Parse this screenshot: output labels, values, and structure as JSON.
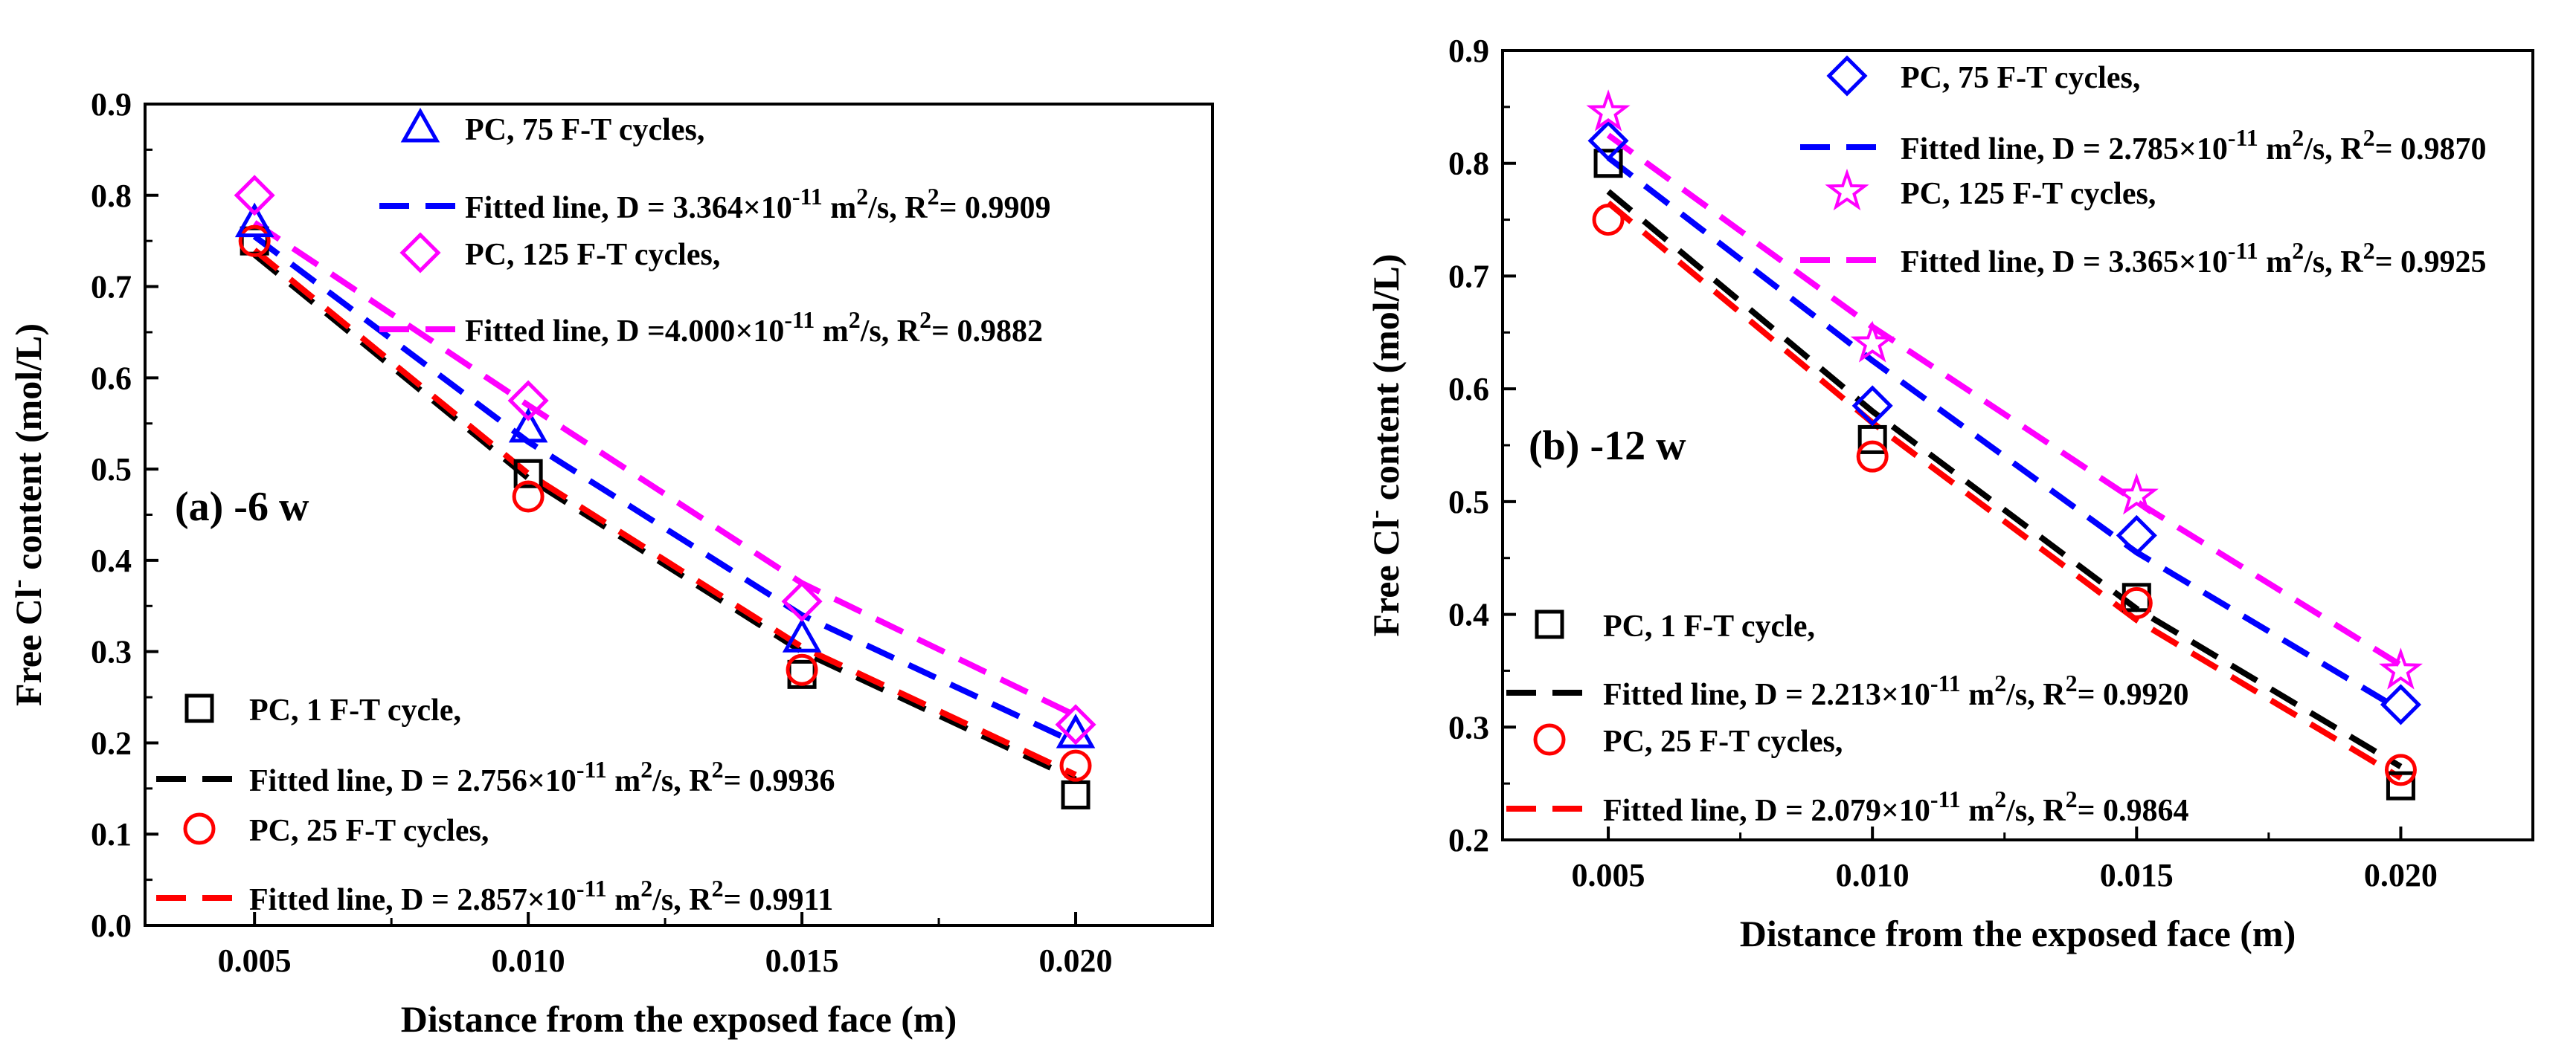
{
  "chart_data": [
    {
      "type": "scatter",
      "panel_label": "(a) -6 w",
      "xlabel": "Distance from the exposed face (m)",
      "ylabel_pre": "Free Cl",
      "ylabel_sup": "-",
      "ylabel_post": " content (mol/L)",
      "xlim": [
        0.003,
        0.0225
      ],
      "ylim": [
        0.0,
        0.9
      ],
      "xticks": [
        "0.005",
        "0.010",
        "0.015",
        "0.020"
      ],
      "xtick_values": [
        0.005,
        0.01,
        0.015,
        0.02
      ],
      "yticks": [
        "0.0",
        "0.1",
        "0.2",
        "0.3",
        "0.4",
        "0.5",
        "0.6",
        "0.7",
        "0.8",
        "0.9"
      ],
      "ytick_values": [
        0.0,
        0.1,
        0.2,
        0.3,
        0.4,
        0.5,
        0.6,
        0.7,
        0.8,
        0.9
      ],
      "grid": false,
      "series": [
        {
          "name": "PC, 1 F-T cycle,",
          "marker": "square",
          "color": "#000000",
          "x": [
            0.005,
            0.01,
            0.015,
            0.02
          ],
          "y": [
            0.75,
            0.495,
            0.275,
            0.143
          ],
          "fit_name_pre": "Fitted line, D = 2.756×10",
          "fit_exp": "-11",
          "fit_mid": " m",
          "fit_exp2": "2",
          "fit_post_a": "/s, R",
          "fit_exp3": "2",
          "fit_post_b": "= 0.9936",
          "fit_y": [
            0.735,
            0.49,
            0.3,
            0.16
          ]
        },
        {
          "name": "PC, 25 F-T cycles,",
          "marker": "circle",
          "color": "#ff0000",
          "x": [
            0.005,
            0.01,
            0.015,
            0.02
          ],
          "y": [
            0.75,
            0.47,
            0.28,
            0.175
          ],
          "fit_name_pre": "Fitted line, D = 2.857×10",
          "fit_exp": "-11",
          "fit_mid": " m",
          "fit_exp2": "2",
          "fit_post_a": "/s, R",
          "fit_exp3": "2",
          "fit_post_b": "= 0.9911",
          "fit_y": [
            0.74,
            0.495,
            0.305,
            0.165
          ]
        },
        {
          "name": "PC, 75 F-T cycles,",
          "marker": "triangle",
          "color": "#0000ff",
          "x": [
            0.005,
            0.01,
            0.015,
            0.02
          ],
          "y": [
            0.77,
            0.545,
            0.315,
            0.21
          ],
          "fit_name_pre": "Fitted line, D = 3.364×10",
          "fit_exp": "-11",
          "fit_mid": " m",
          "fit_exp2": "2",
          "fit_post_a": "/s, R",
          "fit_exp3": "2",
          "fit_post_b": "= 0.9909",
          "fit_y": [
            0.755,
            0.53,
            0.34,
            0.2
          ]
        },
        {
          "name": "PC, 125 F-T cycles,",
          "marker": "diamond",
          "color": "#ff00ff",
          "x": [
            0.005,
            0.01,
            0.015,
            0.02
          ],
          "y": [
            0.8,
            0.575,
            0.355,
            0.22
          ],
          "fit_name_pre": "Fitted line, D =4.000×10",
          "fit_exp": "-11",
          "fit_mid": " m",
          "fit_exp2": "2",
          "fit_post_a": "/s, R",
          "fit_exp3": "2",
          "fit_post_b": "= 0.9882",
          "fit_y": [
            0.77,
            0.57,
            0.375,
            0.23
          ]
        }
      ]
    },
    {
      "type": "scatter",
      "panel_label": "(b) -12 w",
      "xlabel": "Distance from the exposed face (m)",
      "ylabel_pre": "Free Cl",
      "ylabel_sup": "-",
      "ylabel_post": " content (mol/L)",
      "xlim": [
        0.003,
        0.0225
      ],
      "ylim": [
        0.2,
        0.9
      ],
      "xticks": [
        "0.005",
        "0.010",
        "0.015",
        "0.020"
      ],
      "xtick_values": [
        0.005,
        0.01,
        0.015,
        0.02
      ],
      "yticks": [
        "0.2",
        "0.3",
        "0.4",
        "0.5",
        "0.6",
        "0.7",
        "0.8",
        "0.9"
      ],
      "ytick_values": [
        0.2,
        0.3,
        0.4,
        0.5,
        0.6,
        0.7,
        0.8,
        0.9
      ],
      "grid": false,
      "series": [
        {
          "name": "PC, 1 F-T cycle,",
          "marker": "square",
          "color": "#000000",
          "x": [
            0.005,
            0.01,
            0.015,
            0.02
          ],
          "y": [
            0.8,
            0.555,
            0.415,
            0.248
          ],
          "fit_name_pre": "Fitted line, D = 2.213×10",
          "fit_exp": "-11",
          "fit_mid": " m",
          "fit_exp2": "2",
          "fit_post_a": "/s, R",
          "fit_exp3": "2",
          "fit_post_b": "= 0.9920",
          "fit_y": [
            0.775,
            0.58,
            0.405,
            0.265
          ]
        },
        {
          "name": "PC, 25 F-T cycles,",
          "marker": "circle",
          "color": "#ff0000",
          "x": [
            0.005,
            0.01,
            0.015,
            0.02
          ],
          "y": [
            0.75,
            0.54,
            0.41,
            0.262
          ],
          "fit_name_pre": "Fitted line, D = 2.079×10",
          "fit_exp": "-11",
          "fit_mid": " m",
          "fit_exp2": "2",
          "fit_post_a": "/s, R",
          "fit_exp3": "2",
          "fit_post_b": "= 0.9864",
          "fit_y": [
            0.765,
            0.57,
            0.395,
            0.255
          ]
        },
        {
          "name": "PC, 75 F-T cycles,",
          "marker": "diamond",
          "color": "#0000ff",
          "x": [
            0.005,
            0.01,
            0.015,
            0.02
          ],
          "y": [
            0.82,
            0.585,
            0.47,
            0.32
          ],
          "fit_name_pre": "Fitted line, D = 2.785×10",
          "fit_exp": "-11",
          "fit_mid": " m",
          "fit_exp2": "2",
          "fit_post_a": "/s, R",
          "fit_exp3": "2",
          "fit_post_b": "= 0.9870",
          "fit_y": [
            0.805,
            0.625,
            0.455,
            0.315
          ]
        },
        {
          "name": "PC, 125 F-T cycles,",
          "marker": "star",
          "color": "#ff00ff",
          "x": [
            0.005,
            0.01,
            0.015,
            0.02
          ],
          "y": [
            0.845,
            0.64,
            0.505,
            0.35
          ],
          "fit_name_pre": "Fitted line, D = 3.365×10",
          "fit_exp": "-11",
          "fit_mid": " m",
          "fit_exp2": "2",
          "fit_post_a": "/s, R",
          "fit_exp3": "2",
          "fit_post_b": "= 0.9925",
          "fit_y": [
            0.825,
            0.655,
            0.5,
            0.355
          ]
        }
      ]
    }
  ]
}
